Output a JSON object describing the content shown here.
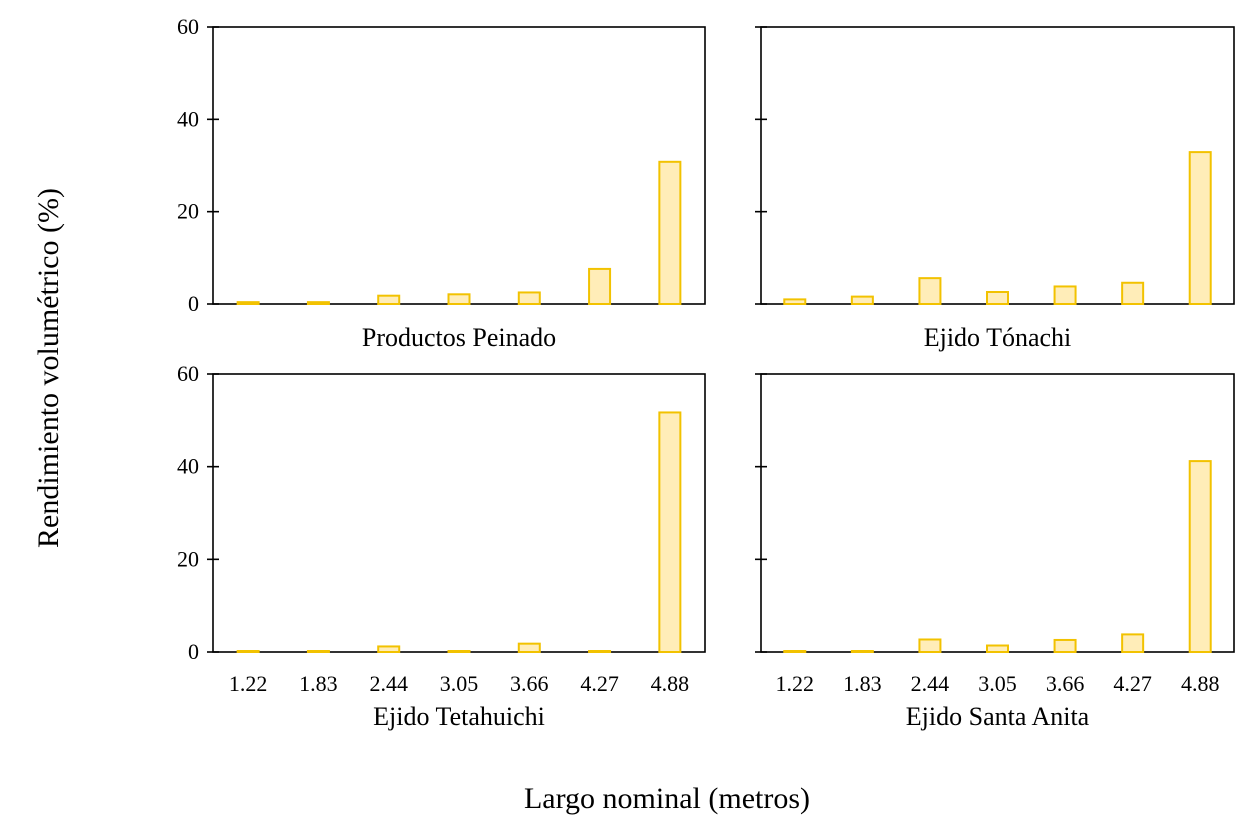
{
  "figure": {
    "ylabel": "Rendimiento volumétrico (%)",
    "xlabel": "Largo nominal (metros)",
    "colors": {
      "bar_fill": "#FFEDB8",
      "bar_stroke": "#F2C200",
      "axis": "#000000"
    }
  },
  "chart_data": [
    {
      "type": "bar",
      "title": "Productos Peinado",
      "categories": [
        "1.22",
        "1.83",
        "2.44",
        "3.05",
        "3.66",
        "4.27",
        "4.88"
      ],
      "values": [
        0.4,
        0.4,
        1.8,
        2.1,
        2.5,
        7.6,
        30.8
      ],
      "ylim": [
        0,
        60
      ],
      "yticks": [
        0,
        20,
        40,
        60
      ],
      "show_y_tick_labels": true,
      "show_x_tick_labels": false
    },
    {
      "type": "bar",
      "title": "Ejido Tónachi",
      "categories": [
        "1.22",
        "1.83",
        "2.44",
        "3.05",
        "3.66",
        "4.27",
        "4.88"
      ],
      "values": [
        1.0,
        1.6,
        5.6,
        2.6,
        3.8,
        4.6,
        32.9
      ],
      "ylim": [
        0,
        60
      ],
      "yticks": [
        0,
        20,
        40,
        60
      ],
      "show_y_tick_labels": false,
      "show_x_tick_labels": false
    },
    {
      "type": "bar",
      "title": "Ejido Tetahuichi",
      "categories": [
        "1.22",
        "1.83",
        "2.44",
        "3.05",
        "3.66",
        "4.27",
        "4.88"
      ],
      "values": [
        0,
        0,
        1.2,
        0,
        1.8,
        0,
        51.7
      ],
      "ylim": [
        0,
        60
      ],
      "yticks": [
        0,
        20,
        40,
        60
      ],
      "show_y_tick_labels": true,
      "show_x_tick_labels": true
    },
    {
      "type": "bar",
      "title": "Ejido Santa Anita",
      "categories": [
        "1.22",
        "1.83",
        "2.44",
        "3.05",
        "3.66",
        "4.27",
        "4.88"
      ],
      "values": [
        0,
        0.1,
        2.7,
        1.4,
        2.6,
        3.8,
        41.2
      ],
      "ylim": [
        0,
        60
      ],
      "yticks": [
        0,
        20,
        40,
        60
      ],
      "show_y_tick_labels": false,
      "show_x_tick_labels": true
    }
  ]
}
